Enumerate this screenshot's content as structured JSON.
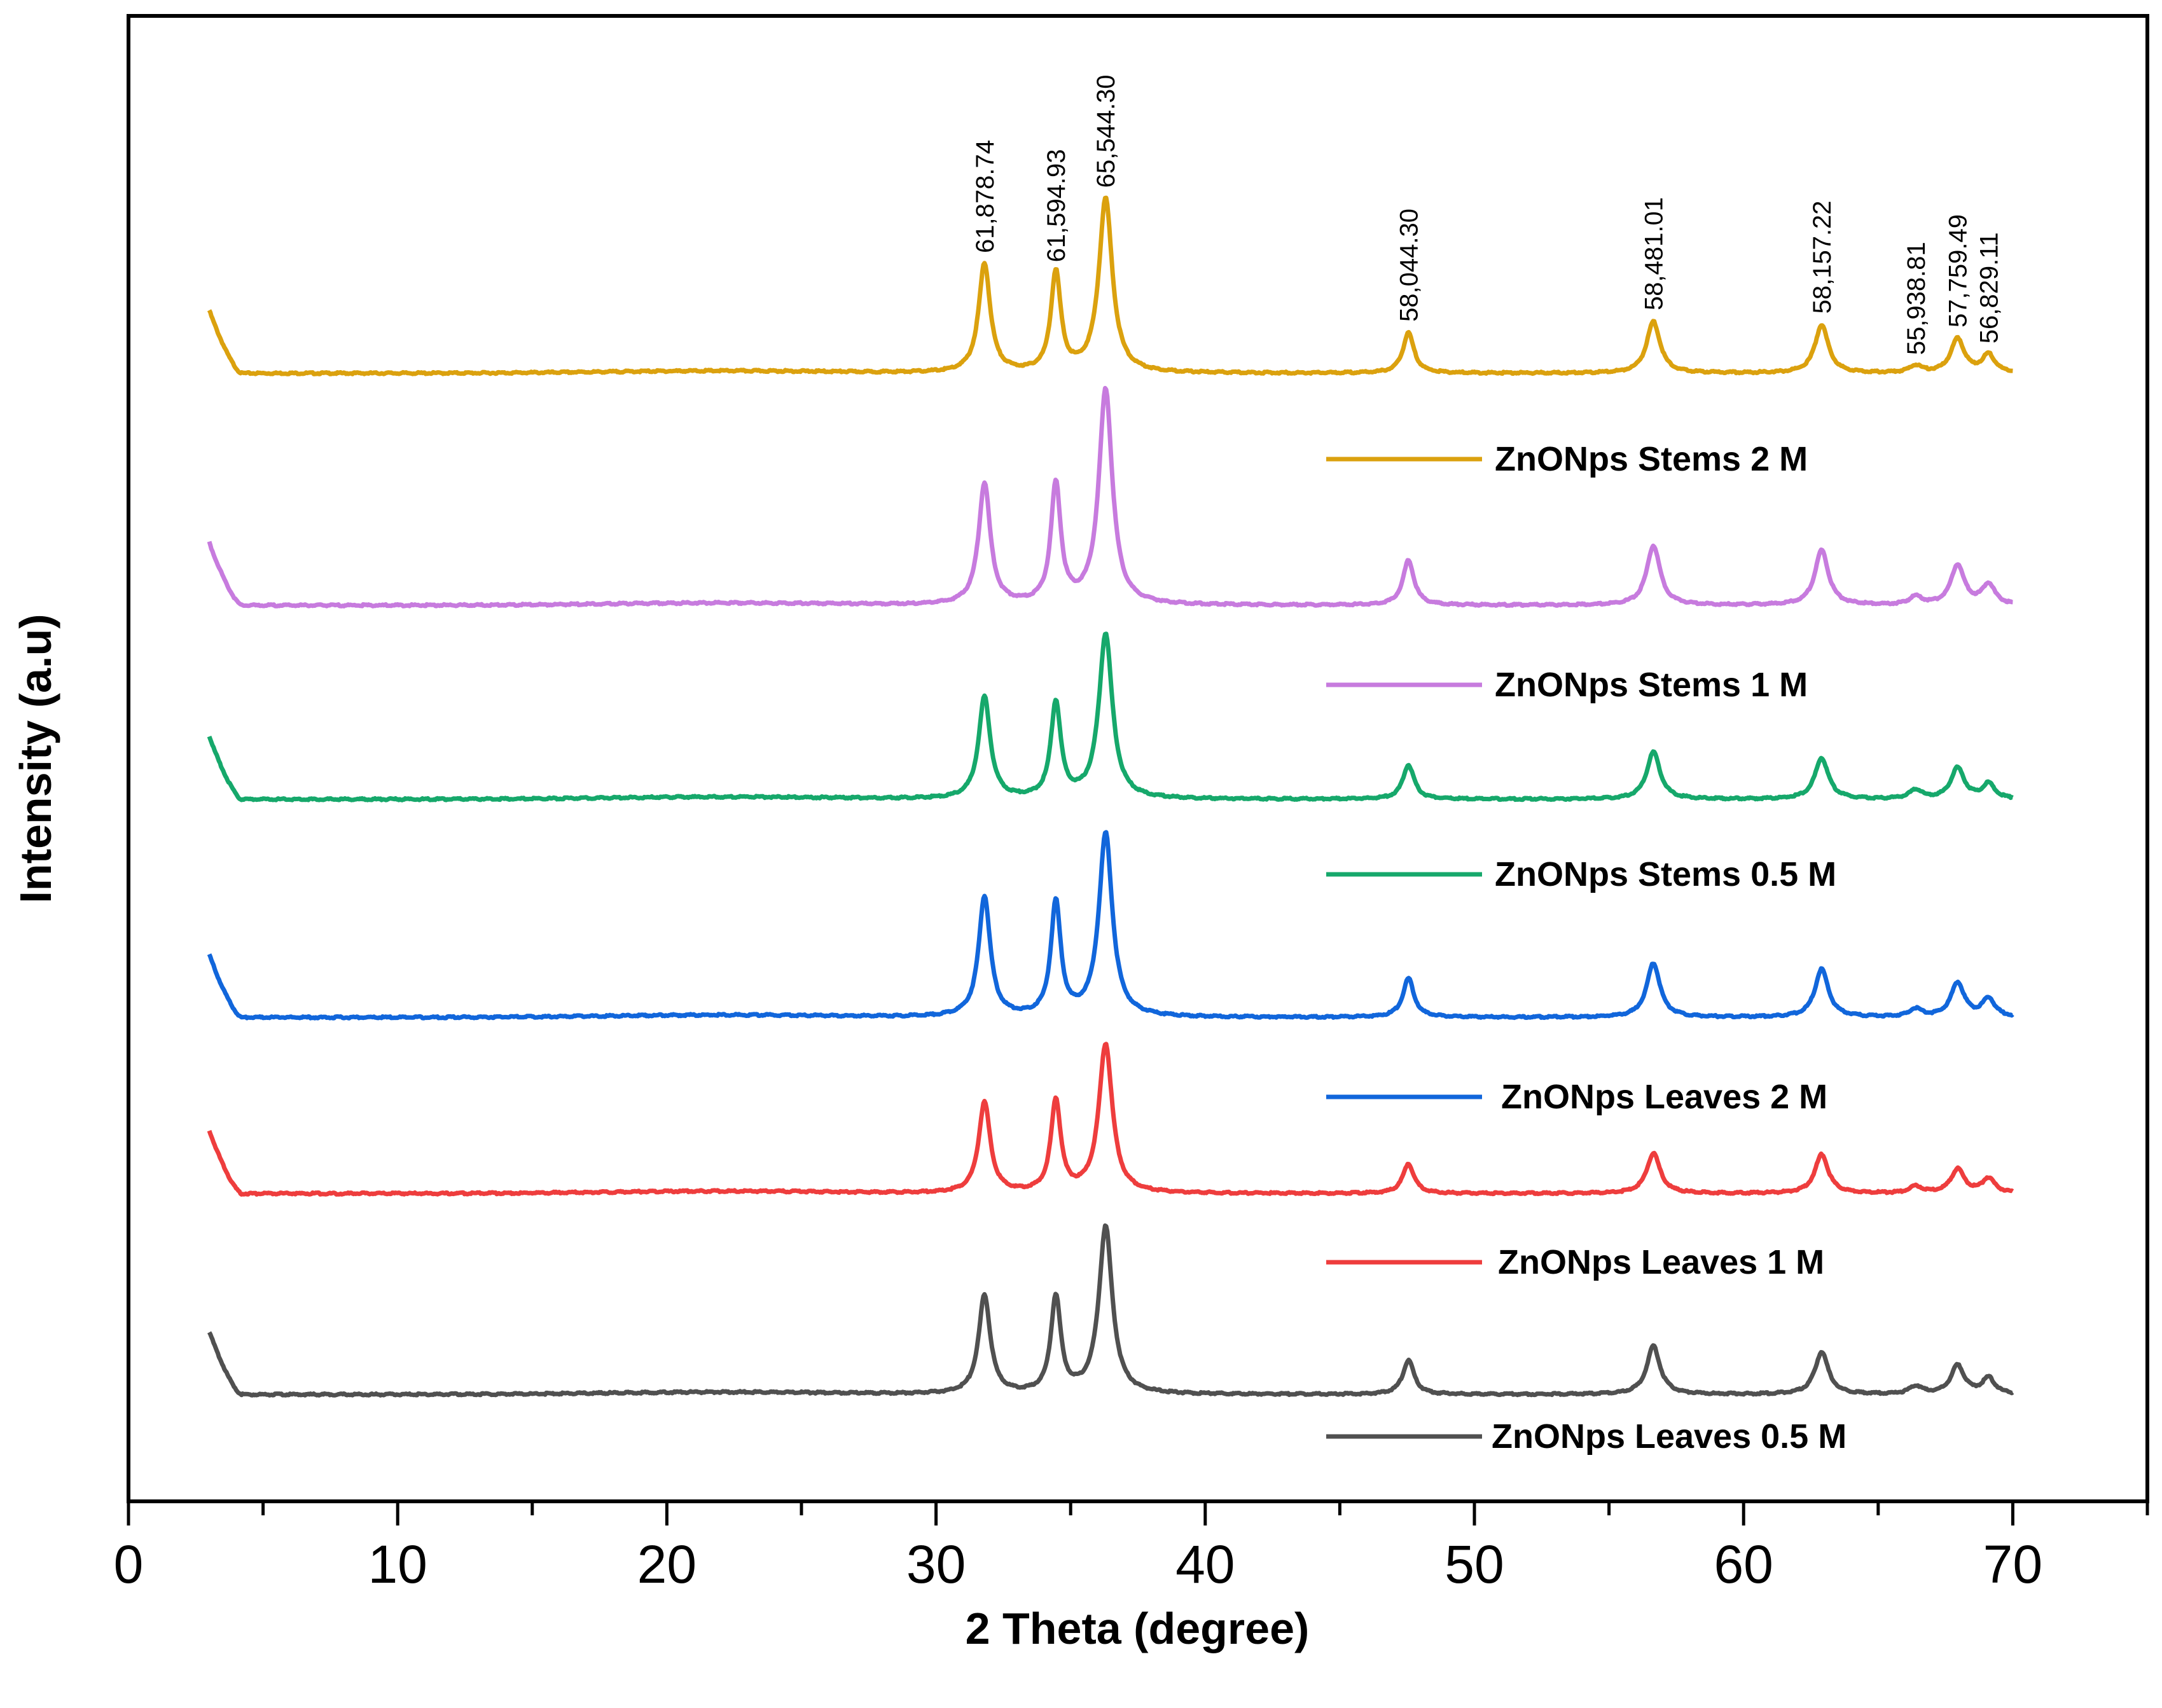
{
  "chart_data": {
    "type": "line",
    "title": "",
    "xlabel": "2 Theta (degree)",
    "ylabel": "Intensity (a.u)",
    "xlim": [
      0,
      75
    ],
    "xticks": [
      0,
      10,
      20,
      30,
      40,
      50,
      60,
      70
    ],
    "yticks_visible": false,
    "grid": false,
    "legend_placement": "right, one entry under each trace",
    "peak_positions_2theta": [
      31.8,
      34.45,
      36.3,
      47.55,
      56.65,
      62.9,
      66.4,
      67.95,
      69.1
    ],
    "peak_annotations": [
      {
        "x": 31.8,
        "text": "61,878.74"
      },
      {
        "x": 34.45,
        "text": "61,594.93"
      },
      {
        "x": 36.3,
        "text": "65,544.30"
      },
      {
        "x": 47.55,
        "text": "58,044.30"
      },
      {
        "x": 56.65,
        "text": "58,481.01"
      },
      {
        "x": 62.9,
        "text": "58,157.22"
      },
      {
        "x": 66.4,
        "text": "55,938.81"
      },
      {
        "x": 67.95,
        "text": "57,759.49"
      },
      {
        "x": 69.1,
        "text": "56,829.11"
      }
    ],
    "series": [
      {
        "name": "ZnONps Stems 2 M",
        "color": "#DBA10E",
        "x_range": [
          3,
          70
        ],
        "baseline": 0.0,
        "peak_heights": [
          0.95,
          0.87,
          1.52,
          0.35,
          0.45,
          0.42,
          0.06,
          0.3,
          0.16
        ]
      },
      {
        "name": "ZnONps Stems 1 M",
        "color": "#C77BDE",
        "x_range": [
          3,
          70
        ],
        "baseline": 0.0,
        "peak_heights": [
          1.06,
          1.04,
          1.88,
          0.39,
          0.52,
          0.48,
          0.07,
          0.35,
          0.18
        ]
      },
      {
        "name": "ZnONps Stems 0.5 M",
        "color": "#16A86B",
        "x_range": [
          3,
          70
        ],
        "baseline": 0.0,
        "peak_heights": [
          0.89,
          0.83,
          1.44,
          0.3,
          0.41,
          0.36,
          0.08,
          0.27,
          0.13
        ]
      },
      {
        "name": "ZnONps Leaves 2 M",
        "color": "#1166DB",
        "x_range": [
          3,
          70
        ],
        "baseline": 0.0,
        "peak_heights": [
          1.05,
          0.99,
          1.6,
          0.34,
          0.47,
          0.42,
          0.07,
          0.3,
          0.16
        ]
      },
      {
        "name": "ZnONps Leaves 1 M",
        "color": "#EE3D3D",
        "x_range": [
          3,
          70
        ],
        "baseline": 0.0,
        "peak_heights": [
          0.79,
          0.8,
          1.3,
          0.26,
          0.35,
          0.34,
          0.06,
          0.21,
          0.13
        ]
      },
      {
        "name": "ZnONps Leaves 0.5 M",
        "color": "#505050",
        "x_range": [
          3,
          70
        ],
        "baseline": 0.0,
        "peak_heights": [
          0.86,
          0.84,
          1.46,
          0.3,
          0.42,
          0.37,
          0.07,
          0.25,
          0.14
        ]
      }
    ]
  }
}
